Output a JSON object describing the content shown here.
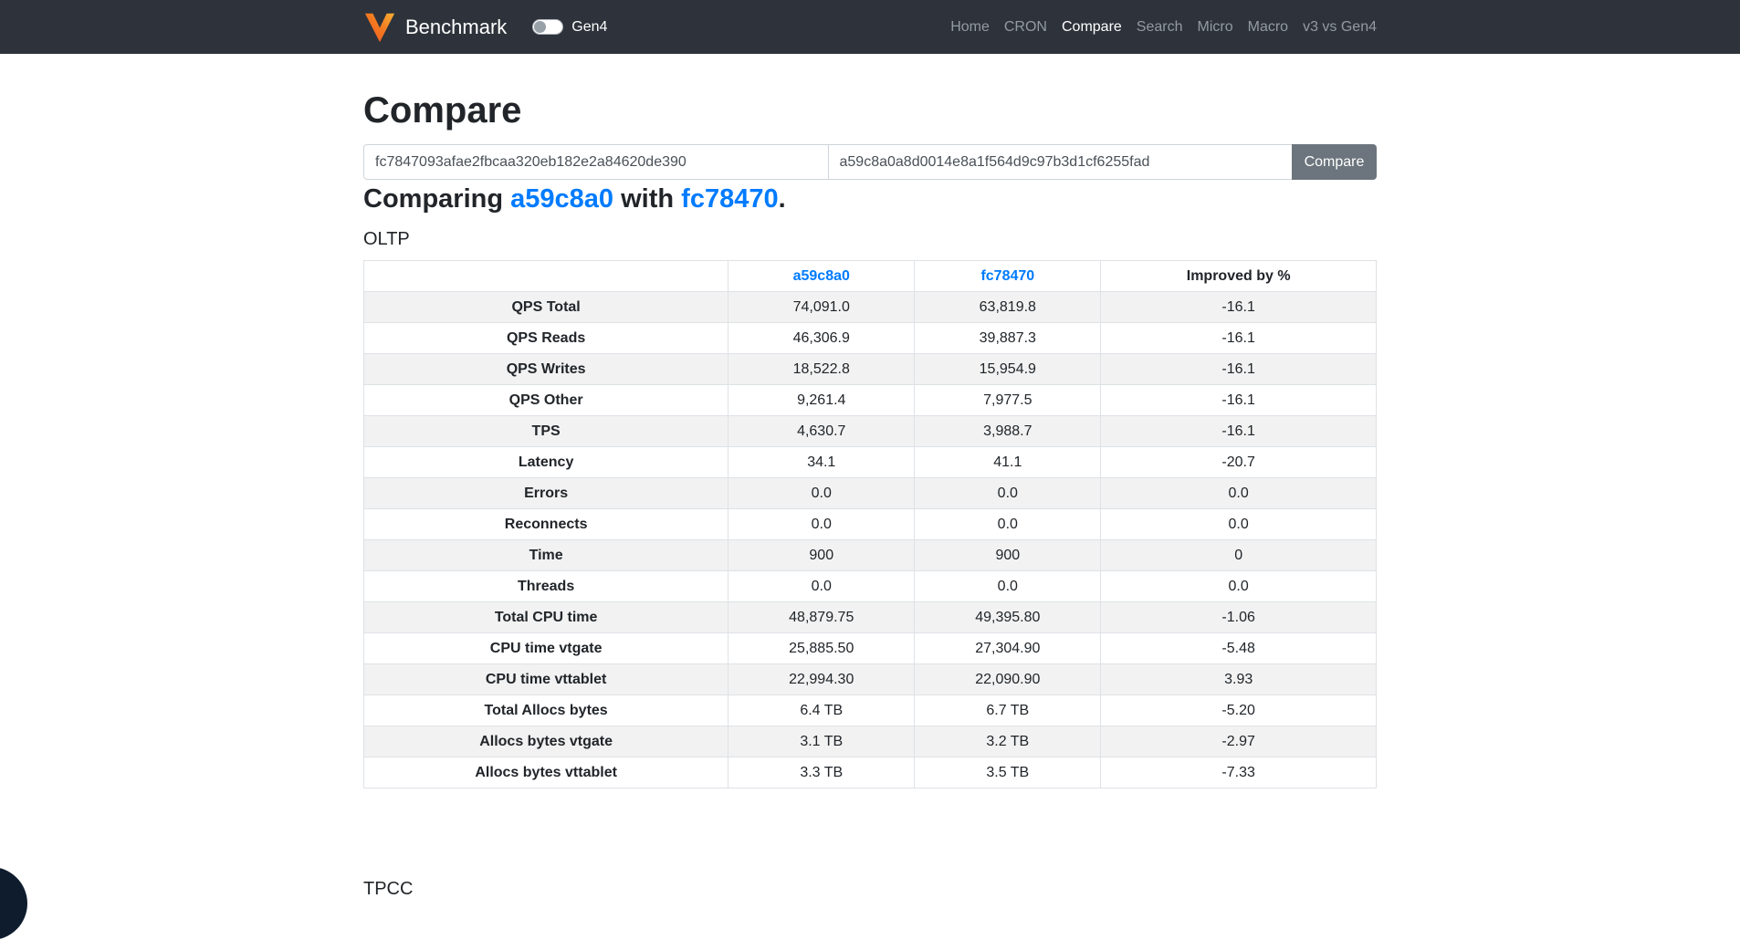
{
  "navbar": {
    "brand": "Benchmark",
    "toggle_label": "Gen4",
    "toggle_state": "off",
    "links": [
      {
        "label": "Home",
        "active": false
      },
      {
        "label": "CRON",
        "active": false
      },
      {
        "label": "Compare",
        "active": true
      },
      {
        "label": "Search",
        "active": false
      },
      {
        "label": "Micro",
        "active": false
      },
      {
        "label": "Macro",
        "active": false
      },
      {
        "label": "v3 vs Gen4",
        "active": false
      }
    ]
  },
  "page": {
    "title": "Compare",
    "form": {
      "left_input_value": "fc7847093afae2fbcaa320eb182e2a84620de390",
      "right_input_value": "a59c8a0a8d0014e8a1f564d9c97b3d1cf6255fad",
      "submit_label": "Compare"
    },
    "comparing": {
      "prefix": "Comparing",
      "left_sha": "a59c8a0",
      "middle": "with",
      "right_sha": "fc78470",
      "period": "."
    },
    "section_title": "OLTP",
    "next_section_title": "TPCC"
  },
  "table": {
    "headers": {
      "label": "",
      "a": "a59c8a0",
      "b": "fc78470",
      "improved": "Improved by %"
    },
    "rows": [
      {
        "label": "QPS Total",
        "a": "74,091.0",
        "b": "63,819.8",
        "improved": "-16.1"
      },
      {
        "label": "QPS Reads",
        "a": "46,306.9",
        "b": "39,887.3",
        "improved": "-16.1"
      },
      {
        "label": "QPS Writes",
        "a": "18,522.8",
        "b": "15,954.9",
        "improved": "-16.1"
      },
      {
        "label": "QPS Other",
        "a": "9,261.4",
        "b": "7,977.5",
        "improved": "-16.1"
      },
      {
        "label": "TPS",
        "a": "4,630.7",
        "b": "3,988.7",
        "improved": "-16.1"
      },
      {
        "label": "Latency",
        "a": "34.1",
        "b": "41.1",
        "improved": "-20.7"
      },
      {
        "label": "Errors",
        "a": "0.0",
        "b": "0.0",
        "improved": "0.0"
      },
      {
        "label": "Reconnects",
        "a": "0.0",
        "b": "0.0",
        "improved": "0.0"
      },
      {
        "label": "Time",
        "a": "900",
        "b": "900",
        "improved": "0"
      },
      {
        "label": "Threads",
        "a": "0.0",
        "b": "0.0",
        "improved": "0.0"
      },
      {
        "label": "Total CPU time",
        "a": "48,879.75",
        "b": "49,395.80",
        "improved": "-1.06"
      },
      {
        "label": "CPU time vtgate",
        "a": "25,885.50",
        "b": "27,304.90",
        "improved": "-5.48"
      },
      {
        "label": "CPU time vttablet",
        "a": "22,994.30",
        "b": "22,090.90",
        "improved": "3.93"
      },
      {
        "label": "Total Allocs bytes",
        "a": "6.4 TB",
        "b": "6.7 TB",
        "improved": "-5.20"
      },
      {
        "label": "Allocs bytes vtgate",
        "a": "3.1 TB",
        "b": "3.2 TB",
        "improved": "-2.97"
      },
      {
        "label": "Allocs bytes vttablet",
        "a": "3.3 TB",
        "b": "3.5 TB",
        "improved": "-7.33"
      }
    ]
  },
  "colors": {
    "navbar_bg": "#2e333b",
    "link_blue": "#007bff",
    "button_gray": "#6c757d",
    "stripe_gray": "#f2f2f2",
    "table_border": "#dee2e6",
    "logo_orange_light": "#fbb034",
    "logo_orange_dark": "#ee5621",
    "corner_shape_dark": "#0e1c2e"
  }
}
